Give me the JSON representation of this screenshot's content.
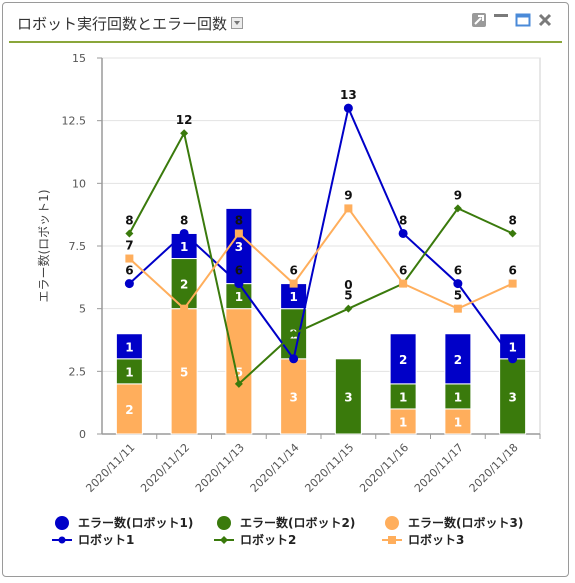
{
  "window": {
    "title": "ロボット実行回数とエラー回数",
    "icons": [
      "chevron-down-icon",
      "pin-icon",
      "minimize-icon",
      "maximize-icon",
      "close-icon"
    ]
  },
  "colors": {
    "robot1": "#0000c8",
    "robot2": "#3a7a0c",
    "robot3": "#ffae5c",
    "header_line": "#8aa63a"
  },
  "chart_data": {
    "type": "bar",
    "title": "",
    "xlabel": "",
    "ylabel": "エラー数(ロボット1)",
    "ylim": [
      0,
      15
    ],
    "yticks": [
      "0",
      "2.5",
      "5",
      "7.5",
      "10",
      "12.5",
      "15"
    ],
    "grid": true,
    "legend": "bottom",
    "categories": [
      "2020/11/11",
      "2020/11/12",
      "2020/11/13",
      "2020/11/14",
      "2020/11/15",
      "2020/11/16",
      "2020/11/17",
      "2020/11/18"
    ],
    "bar_series": [
      {
        "name": "エラー数(ロボット3)",
        "values": [
          2,
          5,
          5,
          3,
          0,
          1,
          1,
          0
        ],
        "labels": [
          "2",
          "5",
          "5",
          "3",
          "",
          "1",
          "1",
          ""
        ]
      },
      {
        "name": "エラー数(ロボット2)",
        "values": [
          1,
          2,
          1,
          2,
          3,
          1,
          1,
          3
        ],
        "labels": [
          "1",
          "2",
          "1",
          "2",
          "3",
          "1",
          "1",
          "3"
        ]
      },
      {
        "name": "エラー数(ロボット1)",
        "values": [
          1,
          1,
          3,
          1,
          0,
          2,
          2,
          1
        ],
        "labels": [
          "1",
          "1",
          "3",
          "1",
          "0",
          "2",
          "2",
          "1"
        ]
      }
    ],
    "line_series": [
      {
        "name": "ロボット1",
        "values": [
          6,
          8,
          6,
          3,
          13,
          8,
          6,
          3
        ],
        "labels": [
          "6",
          "8",
          "6",
          "",
          "13",
          "8",
          "6",
          ""
        ]
      },
      {
        "name": "ロボット2",
        "values": [
          8,
          12,
          2,
          4,
          5,
          6,
          9,
          8
        ],
        "labels": [
          "8",
          "12",
          "",
          "",
          "5",
          "",
          "9",
          "8"
        ]
      },
      {
        "name": "ロボット3",
        "values": [
          7,
          5,
          8,
          6,
          9,
          6,
          5,
          6
        ],
        "labels": [
          "7",
          "",
          "8",
          "6",
          "9",
          "6",
          "5",
          "6"
        ]
      }
    ],
    "legend_items": [
      "エラー数(ロボット1)",
      "エラー数(ロボット2)",
      "エラー数(ロボット3)",
      "ロボット1",
      "ロボット2",
      "ロボット3"
    ]
  }
}
